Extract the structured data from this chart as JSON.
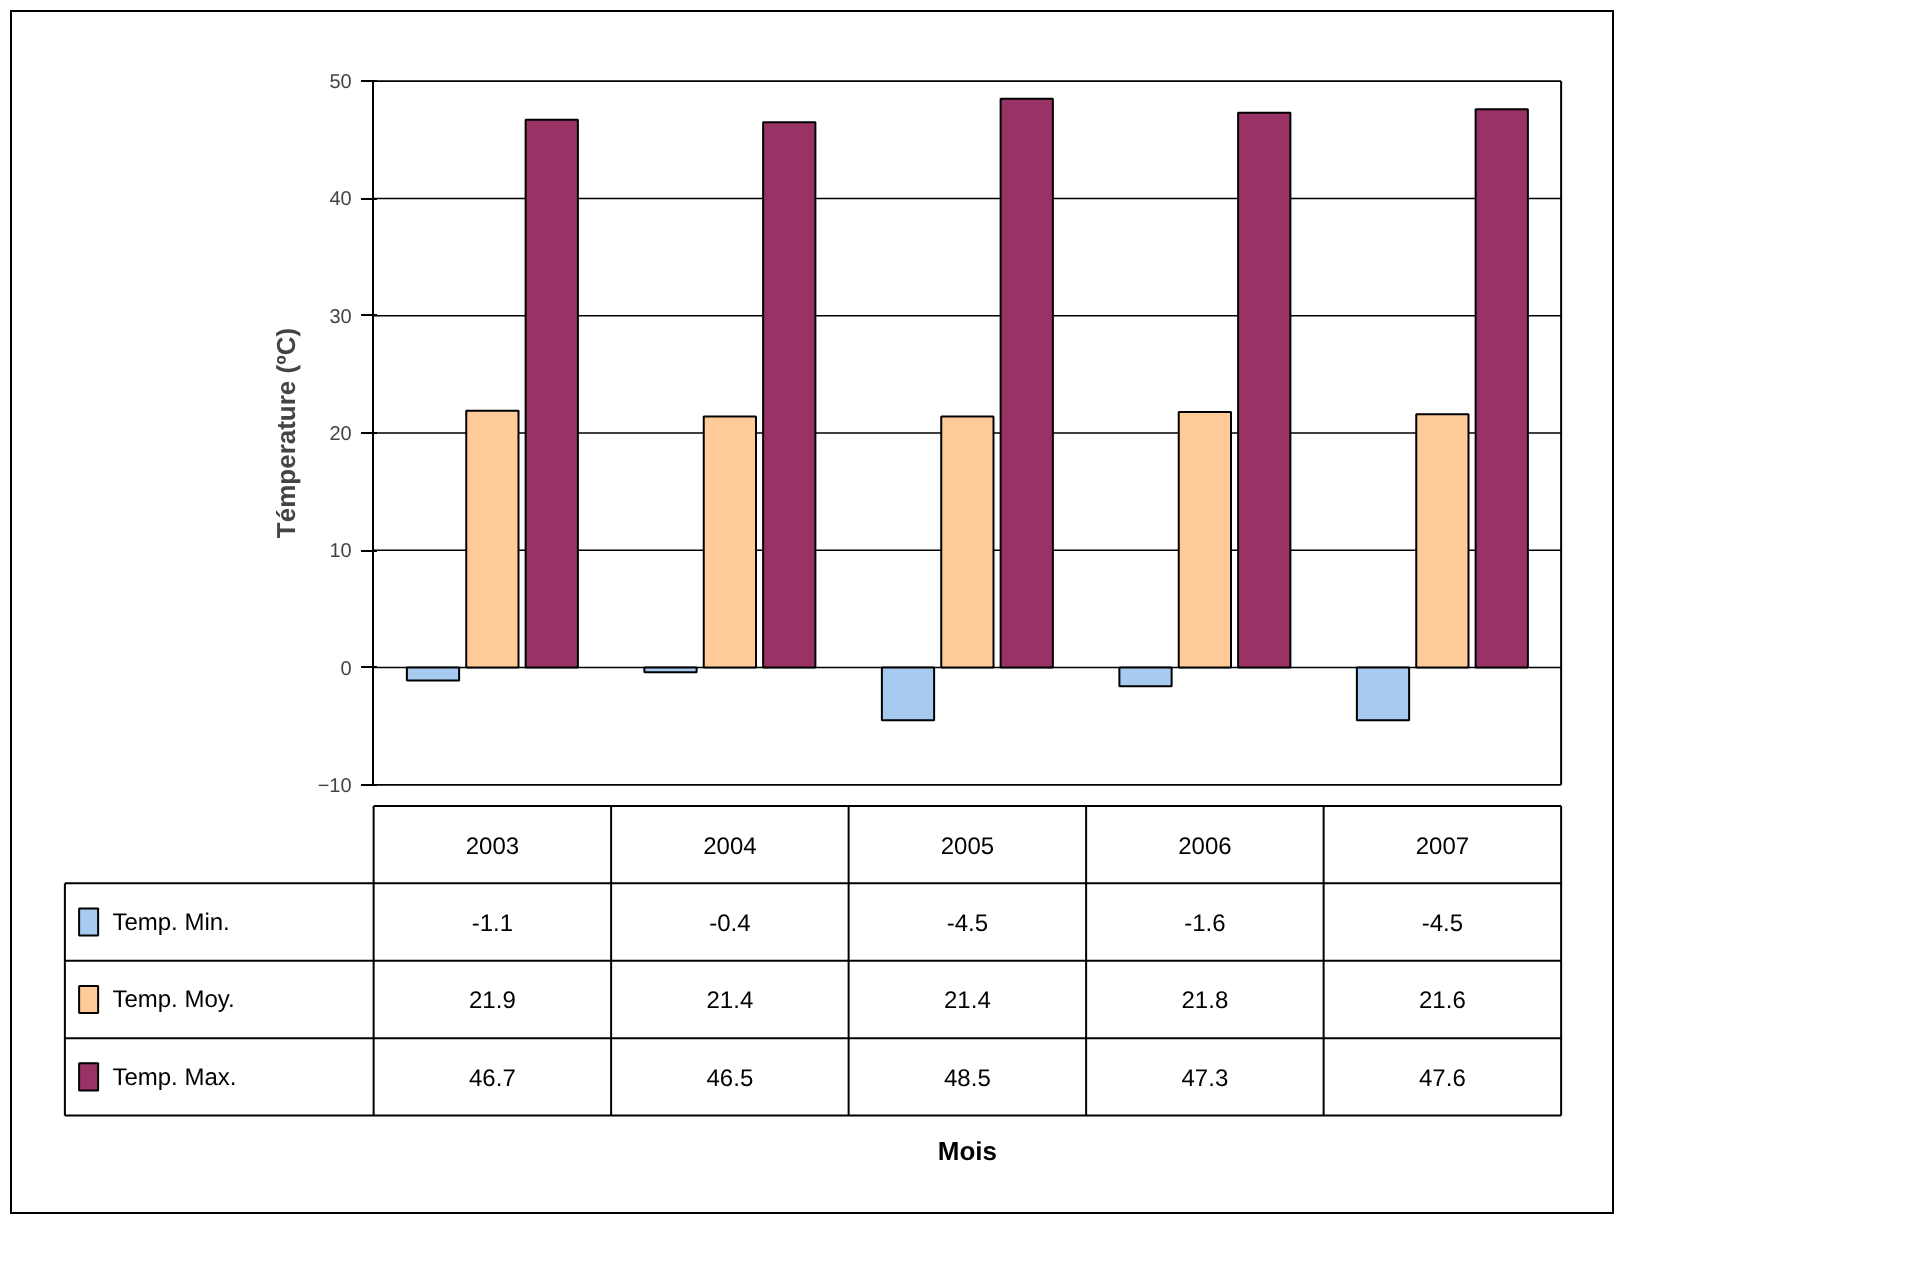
{
  "chart_data": {
    "type": "bar",
    "ylabel": "Témperature (ºC)",
    "annotations": [
      "Mois"
    ],
    "categories": [
      "2003",
      "2004",
      "2005",
      "2006",
      "2007"
    ],
    "series": [
      {
        "name": "Temp. Min.",
        "color": "#a6caf0",
        "values": [
          -1.1,
          -0.4,
          -4.5,
          -1.6,
          -4.5
        ]
      },
      {
        "name": "Temp. Moy.",
        "color": "#ffcc99",
        "values": [
          21.9,
          21.4,
          21.4,
          21.8,
          21.6
        ]
      },
      {
        "name": "Temp. Max.",
        "color": "#993366",
        "values": [
          46.7,
          46.5,
          48.5,
          47.3,
          47.6
        ]
      }
    ],
    "ylim": [
      -10,
      50
    ],
    "yticks": [
      -10,
      0,
      10,
      20,
      30,
      40,
      50
    ],
    "grid": "y",
    "legend": "bottom",
    "data_labels": true
  }
}
